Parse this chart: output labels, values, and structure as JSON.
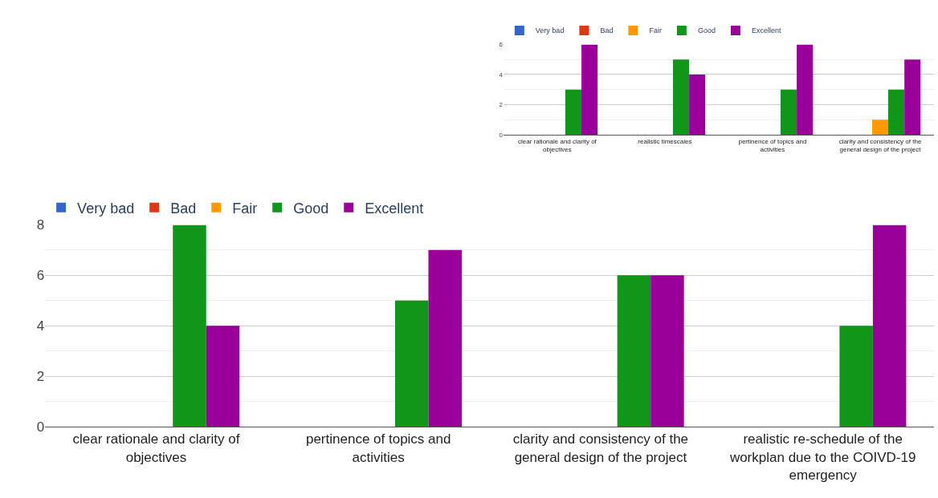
{
  "chart_data": [
    {
      "type": "bar",
      "categories": [
        "clear rationale and clarity of objectives",
        "realistic timescales",
        "pertinence of topics and activities",
        "clarity and consistency of the general design of the project"
      ],
      "series": [
        {
          "name": "Very bad",
          "color": "#3366cc",
          "values": [
            0,
            0,
            0,
            0
          ]
        },
        {
          "name": "Bad",
          "color": "#dc3912",
          "values": [
            0,
            0,
            0,
            0
          ]
        },
        {
          "name": "Fair",
          "color": "#ff9900",
          "values": [
            0,
            0,
            0,
            1
          ]
        },
        {
          "name": "Good",
          "color": "#109618",
          "values": [
            3,
            5,
            3,
            3
          ]
        },
        {
          "name": "Excellent",
          "color": "#990099",
          "values": [
            6,
            4,
            6,
            5
          ]
        }
      ],
      "ylim": [
        0,
        6
      ],
      "yticks": [
        0,
        2,
        4,
        6
      ],
      "grid": "y",
      "legend": "top left"
    },
    {
      "type": "bar",
      "categories": [
        "clear rationale and clarity of objectives",
        "pertinence of topics and activities",
        "clarity and consistency of the general design of the project",
        "realistic re-schedule of the workplan due to the COIVD-19 emergency"
      ],
      "series": [
        {
          "name": "Very bad",
          "color": "#3366cc",
          "values": [
            0,
            0,
            0,
            0
          ]
        },
        {
          "name": "Bad",
          "color": "#dc3912",
          "values": [
            0,
            0,
            0,
            0
          ]
        },
        {
          "name": "Fair",
          "color": "#ff9900",
          "values": [
            0,
            0,
            0,
            0
          ]
        },
        {
          "name": "Good",
          "color": "#109618",
          "values": [
            8,
            5,
            6,
            4
          ]
        },
        {
          "name": "Excellent",
          "color": "#990099",
          "values": [
            4,
            7,
            6,
            8
          ]
        }
      ],
      "ylim": [
        0,
        8
      ],
      "yticks": [
        0,
        2,
        4,
        6,
        8
      ],
      "grid": "y",
      "legend": "top left"
    }
  ]
}
